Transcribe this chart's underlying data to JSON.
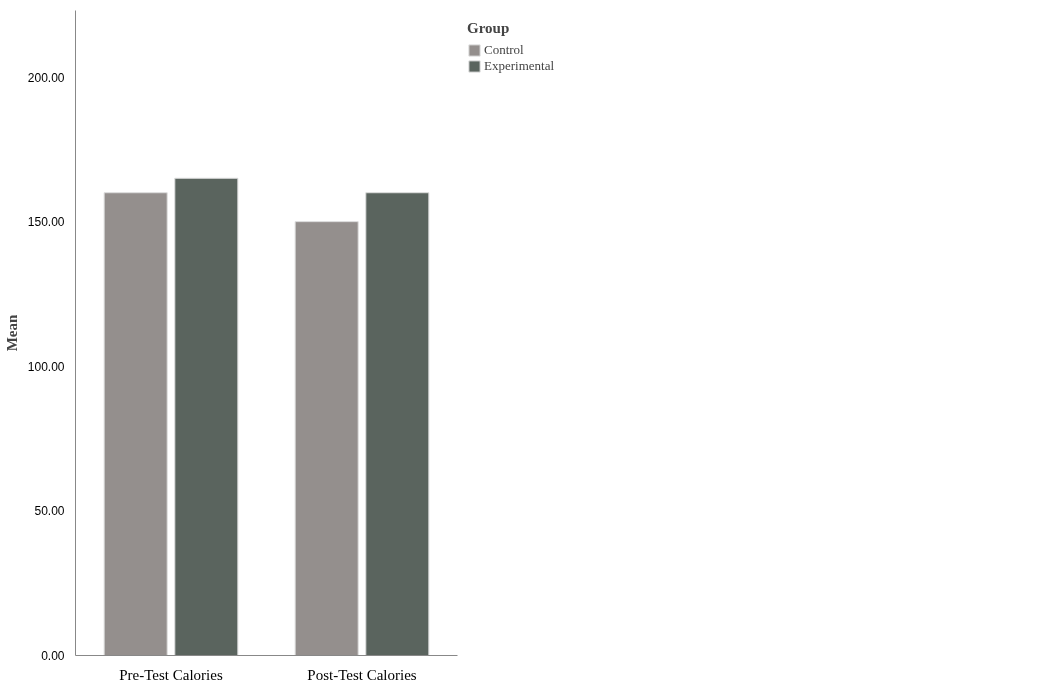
{
  "chart_data": {
    "type": "bar",
    "ylabel": "Mean",
    "legend_title": "Group",
    "categories": [
      "Pre-Test Calories",
      "Post-Test Calories"
    ],
    "series": [
      {
        "name": "Control",
        "color": "#948f8d",
        "values": [
          160,
          150
        ]
      },
      {
        "name": "Experimental",
        "color": "#5a645e",
        "values": [
          165,
          160
        ]
      }
    ],
    "ylim": [
      0,
      223
    ],
    "yticks": [
      {
        "value": 0,
        "label": "0.00"
      },
      {
        "value": 50,
        "label": "50.00"
      },
      {
        "value": 100,
        "label": "100.00"
      },
      {
        "value": 150,
        "label": "150.00"
      },
      {
        "value": 200,
        "label": "200.00"
      }
    ],
    "grid": false,
    "legend": "top right"
  }
}
